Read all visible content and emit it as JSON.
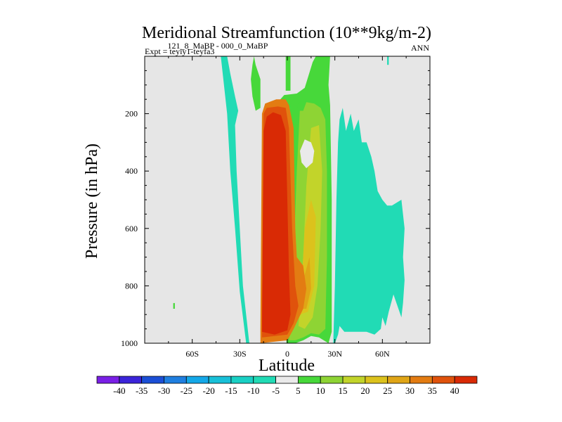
{
  "chart_data": {
    "type": "heatmap",
    "title": "Meridional Streamfunction (10**9kg/m-2)",
    "subtitle_left": "Expt = teyiy1-teyfa3",
    "subtitle_center": "121_8_MaBP - 000_0_MaBP",
    "subtitle_right": "ANN",
    "xlabel": "Latitude",
    "ylabel": "Pressure (in hPa)",
    "xlim": [
      -90,
      90
    ],
    "ylim": [
      1000,
      0
    ],
    "y_reversed": true,
    "grid": false,
    "background_color": "#e6e6e6",
    "x_ticks": [
      {
        "value": -60,
        "label": "60S"
      },
      {
        "value": -30,
        "label": "30S"
      },
      {
        "value": 0,
        "label": "0"
      },
      {
        "value": 30,
        "label": "30N"
      },
      {
        "value": 60,
        "label": "60N"
      }
    ],
    "y_ticks": [
      {
        "value": 200,
        "label": "200"
      },
      {
        "value": 400,
        "label": "400"
      },
      {
        "value": 600,
        "label": "600"
      },
      {
        "value": 800,
        "label": "800"
      },
      {
        "value": 1000,
        "label": "1000"
      }
    ],
    "colorbar": {
      "placement": "bottom",
      "levels": [
        -40,
        -35,
        -30,
        -25,
        -20,
        -15,
        -10,
        -5,
        5,
        10,
        15,
        20,
        25,
        30,
        35,
        40
      ],
      "level_labels": [
        "-40",
        "-35",
        "-30",
        "-25",
        "-20",
        "-15",
        "-10",
        "-5",
        "5",
        "10",
        "15",
        "20",
        "25",
        "30",
        "35",
        "40"
      ],
      "colors": [
        "#7a1fe6",
        "#3b24d9",
        "#1b4fd6",
        "#1f7fe0",
        "#14a8e8",
        "#18c0d8",
        "#19d0c4",
        "#21dbb5",
        "#eaeaea",
        "#47d83a",
        "#8ed434",
        "#c2d42a",
        "#dcc21c",
        "#e0a516",
        "#e37c12",
        "#e0520c",
        "#d92a05"
      ]
    },
    "regions": [
      {
        "value_band": "5 to 10",
        "color": "#47d83a",
        "polygon": [
          [
            -0.5,
            1000
          ],
          [
            -1,
            960
          ],
          [
            -2,
            880
          ],
          [
            -3,
            600
          ],
          [
            -4,
            250
          ],
          [
            -6,
            160
          ],
          [
            -2,
            135
          ],
          [
            6,
            130
          ],
          [
            11,
            110
          ],
          [
            16,
            20
          ],
          [
            18,
            0
          ],
          [
            27,
            0
          ],
          [
            26,
            100
          ],
          [
            27,
            170
          ],
          [
            28,
            500
          ],
          [
            28,
            800
          ],
          [
            28,
            960
          ],
          [
            26,
            1000
          ],
          [
            20,
            980
          ],
          [
            15,
            975
          ],
          [
            10,
            990
          ],
          [
            5,
            1000
          ]
        ]
      },
      {
        "value_band": "10 to 15",
        "color": "#8ed434",
        "polygon": [
          [
            1,
            990
          ],
          [
            2,
            900
          ],
          [
            4,
            700
          ],
          [
            6,
            400
          ],
          [
            8,
            180
          ],
          [
            12,
            160
          ],
          [
            17,
            165
          ],
          [
            21,
            180
          ],
          [
            24,
            220
          ],
          [
            25,
            400
          ],
          [
            25,
            700
          ],
          [
            24,
            950
          ],
          [
            20,
            970
          ],
          [
            15,
            965
          ],
          [
            10,
            980
          ],
          [
            5,
            990
          ]
        ]
      },
      {
        "value_band": "15 to 20",
        "color": "#c2d42a",
        "polygon": [
          [
            7,
            940
          ],
          [
            10,
            700
          ],
          [
            12,
            450
          ],
          [
            15,
            250
          ],
          [
            20,
            240
          ],
          [
            22,
            400
          ],
          [
            21,
            600
          ],
          [
            19,
            800
          ],
          [
            16,
            910
          ],
          [
            11,
            950
          ]
        ]
      },
      {
        "value_band": "20 to 25",
        "color": "#dcc21c",
        "polygon": [
          [
            8,
            900
          ],
          [
            11,
            600
          ],
          [
            15,
            500
          ],
          [
            18,
            560
          ],
          [
            17,
            800
          ],
          [
            13,
            890
          ]
        ]
      },
      {
        "value_band": "25 to 30",
        "color": "#e0a516",
        "polygon": [
          [
            6,
            880
          ],
          [
            10,
            780
          ],
          [
            14,
            700
          ],
          [
            15,
            810
          ],
          [
            12,
            880
          ]
        ]
      },
      {
        "value_band": "5 to 10",
        "color": "#47d83a",
        "polygon": [
          [
            -22,
            30
          ],
          [
            -21,
            0
          ],
          [
            -20,
            30
          ],
          [
            -17,
            80
          ],
          [
            -17,
            180
          ],
          [
            -20,
            190
          ],
          [
            -22,
            140
          ],
          [
            -23,
            80
          ]
        ]
      },
      {
        "value_band": "5 to 10",
        "color": "#47d83a",
        "polygon": [
          [
            -1,
            0
          ],
          [
            2,
            0
          ],
          [
            2,
            120
          ],
          [
            -1,
            120
          ]
        ]
      },
      {
        "value_band": "5 to 10",
        "color": "#47d83a",
        "polygon": [
          [
            -72,
            860
          ],
          [
            -71,
            860
          ],
          [
            -71,
            880
          ],
          [
            -72,
            880
          ]
        ]
      },
      {
        "value_band": "30 to 35",
        "color": "#e37c12",
        "polygon": [
          [
            -17,
            1000
          ],
          [
            -17,
            950
          ],
          [
            -16,
            200
          ],
          [
            -14,
            165
          ],
          [
            -7,
            150
          ],
          [
            -1,
            150
          ],
          [
            1,
            170
          ],
          [
            4,
            250
          ],
          [
            5,
            600
          ],
          [
            6,
            700
          ],
          [
            10,
            730
          ],
          [
            12,
            810
          ],
          [
            10,
            880
          ],
          [
            4,
            950
          ],
          [
            0,
            990
          ]
        ]
      },
      {
        "value_band": "35 to 40",
        "color": "#e0520c",
        "polygon": [
          [
            -16,
            980
          ],
          [
            -15,
            200
          ],
          [
            -13,
            180
          ],
          [
            -6,
            175
          ],
          [
            -1,
            180
          ],
          [
            1,
            250
          ],
          [
            3,
            600
          ],
          [
            4,
            700
          ],
          [
            5,
            800
          ],
          [
            7,
            870
          ],
          [
            4,
            930
          ],
          [
            0,
            970
          ]
        ]
      },
      {
        "value_band": ">40",
        "color": "#d92a05",
        "polygon": [
          [
            -16,
            960
          ],
          [
            -15,
            260
          ],
          [
            -13,
            210
          ],
          [
            -9,
            195
          ],
          [
            -4,
            205
          ],
          [
            -1,
            260
          ],
          [
            0,
            500
          ],
          [
            1,
            750
          ],
          [
            2,
            900
          ],
          [
            0,
            955
          ],
          [
            -8,
            970
          ]
        ]
      },
      {
        "value_band": "-5 to 5",
        "color": "#eaeaea",
        "polygon": [
          [
            8,
            330
          ],
          [
            11,
            290
          ],
          [
            15,
            300
          ],
          [
            17,
            330
          ],
          [
            16,
            370
          ],
          [
            12,
            390
          ],
          [
            9,
            370
          ]
        ]
      },
      {
        "value_band": "5 to 10",
        "color": "#47d83a",
        "polygon": [
          [
            6,
            170
          ],
          [
            9,
            155
          ],
          [
            12,
            160
          ],
          [
            10,
            190
          ],
          [
            7,
            190
          ]
        ]
      },
      {
        "value_band": "-10 to -5",
        "color": "#21dbb5",
        "polygon": [
          [
            -42,
            0
          ],
          [
            -38,
            0
          ],
          [
            -36,
            60
          ],
          [
            -33,
            140
          ],
          [
            -31,
            190
          ],
          [
            -33,
            240
          ],
          [
            -32,
            400
          ],
          [
            -30,
            600
          ],
          [
            -28,
            800
          ],
          [
            -24,
            1000
          ],
          [
            -26,
            1000
          ],
          [
            -30,
            820
          ],
          [
            -33,
            600
          ],
          [
            -36,
            400
          ],
          [
            -38,
            200
          ],
          [
            -40,
            100
          ]
        ]
      },
      {
        "value_band": "-10 to -5",
        "color": "#21dbb5",
        "polygon": [
          [
            29,
            1000
          ],
          [
            30,
            800
          ],
          [
            31,
            500
          ],
          [
            32,
            300
          ],
          [
            33,
            220
          ],
          [
            35,
            180
          ],
          [
            37,
            260
          ],
          [
            40,
            200
          ],
          [
            42,
            260
          ],
          [
            45,
            220
          ],
          [
            47,
            300
          ],
          [
            50,
            300
          ],
          [
            53,
            350
          ],
          [
            55,
            400
          ],
          [
            57,
            470
          ],
          [
            60,
            500
          ],
          [
            63,
            520
          ],
          [
            66,
            520
          ],
          [
            72,
            500
          ],
          [
            74,
            600
          ],
          [
            73,
            700
          ],
          [
            74,
            780
          ],
          [
            73,
            860
          ],
          [
            72,
            910
          ],
          [
            67,
            830
          ],
          [
            64,
            890
          ],
          [
            62,
            940
          ],
          [
            60,
            910
          ],
          [
            59,
            950
          ],
          [
            55,
            970
          ],
          [
            50,
            960
          ],
          [
            45,
            960
          ],
          [
            40,
            960
          ],
          [
            36,
            960
          ],
          [
            33,
            940
          ],
          [
            32,
            970
          ],
          [
            30,
            1000
          ]
        ]
      },
      {
        "value_band": "-10 to -5",
        "color": "#21dbb5",
        "polygon": [
          [
            63,
            0
          ],
          [
            64,
            0
          ],
          [
            64,
            30
          ],
          [
            63,
            30
          ]
        ]
      }
    ]
  }
}
